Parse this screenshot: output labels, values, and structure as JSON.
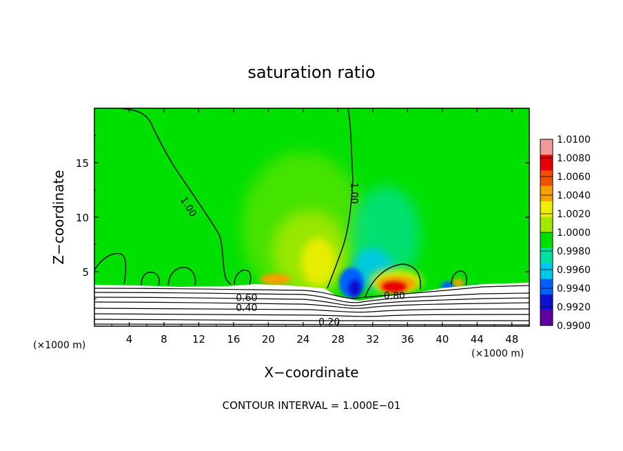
{
  "chart_data": {
    "type": "heatmap",
    "title": "saturation ratio",
    "xlabel": "X−coordinate",
    "ylabel": "Z−coordinate",
    "x_unit_left": "(×1000 m)",
    "x_unit_right": "(×1000 m)",
    "footer": "CONTOUR INTERVAL = 1.000E−01",
    "xlim": [
      0,
      50
    ],
    "ylim": [
      0,
      20
    ],
    "x_ticks": [
      4,
      8,
      12,
      16,
      20,
      24,
      28,
      32,
      36,
      40,
      44,
      48
    ],
    "y_ticks": [
      5,
      10,
      15
    ],
    "colorbar": {
      "min": 0.99,
      "max": 1.01,
      "labels": [
        "1.0100",
        "1.0080",
        "1.0060",
        "1.0040",
        "1.0020",
        "1.0000",
        "0.9980",
        "0.9960",
        "0.9940",
        "0.9920",
        "0.9900"
      ],
      "colors": [
        "#f29a9a",
        "#e80000",
        "#f05000",
        "#f3a100",
        "#f0ee00",
        "#a3e600",
        "#00e000",
        "#00e0a0",
        "#00c8e8",
        "#0060ff",
        "#1010d0",
        "#6000a0"
      ]
    },
    "contour_labels": [
      {
        "text": "1.00",
        "x": 10.5,
        "z": 10.8,
        "angle": 58
      },
      {
        "text": "1.00",
        "x": 29.5,
        "z": 12.2,
        "angle": 90
      },
      {
        "text": "0.80",
        "x": 34.5,
        "z": 2.5,
        "angle": 0
      },
      {
        "text": "0.60",
        "x": 17.5,
        "z": 2.3,
        "angle": 0
      },
      {
        "text": "0.40",
        "x": 17.5,
        "z": 1.4,
        "angle": 0
      },
      {
        "text": "0.20",
        "x": 27.0,
        "z": 0.1,
        "angle": 0
      }
    ]
  }
}
